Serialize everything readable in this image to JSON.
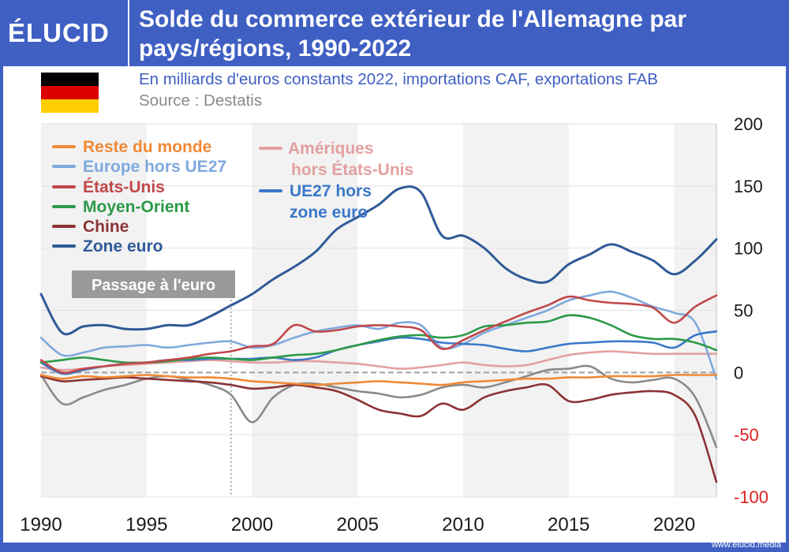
{
  "header": {
    "logo": "ÉLUCID",
    "title": "Solde du commerce extérieur de l'Allemagne par pays/régions, 1990-2022",
    "subtitle": "En milliards d'euros constants 2022, importations CAF, exportations FAB",
    "source": "Source : Destatis"
  },
  "flag_colors": [
    "#000000",
    "#dd0000",
    "#ffce00"
  ],
  "footer": {
    "url": "www.elucid.media"
  },
  "chart_data": {
    "type": "line",
    "title": "",
    "xlabel": "",
    "ylabel": "",
    "xlim": [
      1990,
      2022
    ],
    "ylim": [
      -100,
      200
    ],
    "x_ticks": [
      1990,
      1995,
      2000,
      2005,
      2010,
      2015,
      2020
    ],
    "y_ticks": [
      200,
      150,
      100,
      50,
      0,
      -50,
      -100
    ],
    "y_tick_colors": {
      "positive": "#1a1a1a",
      "negative": "#e0201f"
    },
    "grid": true,
    "shaded_bands": true,
    "legend_position": "top-left",
    "annotation": {
      "label": "Passage à l'euro",
      "x": 1999
    },
    "zero_line": "dashed",
    "x": [
      1990,
      1991,
      1992,
      1993,
      1994,
      1995,
      1996,
      1997,
      1998,
      1999,
      2000,
      2001,
      2002,
      2003,
      2004,
      2005,
      2006,
      2007,
      2008,
      2009,
      2010,
      2011,
      2012,
      2013,
      2014,
      2015,
      2016,
      2017,
      2018,
      2019,
      2020,
      2021,
      2022
    ],
    "series": [
      {
        "name": "Reste du monde",
        "color": "#f08a35",
        "values": [
          -2,
          -5,
          -3,
          -4,
          -3,
          -2,
          -3,
          -4,
          -4,
          -5,
          -7,
          -8,
          -9,
          -10,
          -9,
          -8,
          -7,
          -8,
          -9,
          -10,
          -8,
          -7,
          -6,
          -5,
          -5,
          -4,
          -4,
          -3,
          -3,
          -3,
          -2,
          -2,
          -2
        ]
      },
      {
        "name": "Europe hors UE27",
        "color": "#7fa9dd",
        "values": [
          28,
          14,
          16,
          20,
          21,
          22,
          20,
          22,
          24,
          25,
          20,
          22,
          28,
          33,
          36,
          38,
          35,
          40,
          38,
          20,
          23,
          32,
          38,
          44,
          50,
          58,
          62,
          65,
          60,
          53,
          48,
          40,
          -5
        ]
      },
      {
        "name": "États-Unis",
        "color": "#c0484b",
        "values": [
          10,
          0,
          3,
          5,
          7,
          8,
          10,
          12,
          15,
          17,
          21,
          23,
          38,
          33,
          34,
          37,
          38,
          37,
          34,
          19,
          26,
          34,
          41,
          48,
          54,
          61,
          58,
          56,
          55,
          52,
          40,
          53,
          62
        ]
      },
      {
        "name": "Moyen-Orient",
        "color": "#2c9a48",
        "values": [
          8,
          10,
          12,
          10,
          8,
          8,
          9,
          11,
          12,
          11,
          10,
          12,
          14,
          15,
          18,
          22,
          26,
          29,
          30,
          28,
          30,
          37,
          38,
          40,
          41,
          46,
          44,
          38,
          30,
          27,
          27,
          24,
          18
        ]
      },
      {
        "name": "Chine",
        "color": "#8c3335",
        "values": [
          -3,
          -7,
          -6,
          -5,
          -4,
          -5,
          -6,
          -7,
          -8,
          -10,
          -13,
          -12,
          -10,
          -12,
          -15,
          -22,
          -30,
          -33,
          -35,
          -25,
          -30,
          -20,
          -15,
          -12,
          -10,
          -23,
          -22,
          -18,
          -16,
          -15,
          -18,
          -35,
          -88
        ]
      },
      {
        "name": "Zone euro",
        "color": "#2f5a97",
        "values": [
          63,
          32,
          37,
          38,
          35,
          35,
          38,
          38,
          45,
          54,
          63,
          75,
          85,
          97,
          115,
          125,
          135,
          148,
          145,
          110,
          110,
          100,
          84,
          75,
          73,
          87,
          95,
          103,
          97,
          90,
          79,
          90,
          107
        ]
      },
      {
        "name": "Amériques hors États-Unis",
        "color": "#e4a0a0",
        "values": [
          4,
          2,
          3,
          5,
          6,
          7,
          8,
          9,
          10,
          9,
          8,
          8,
          9,
          9,
          8,
          7,
          5,
          3,
          4,
          6,
          8,
          6,
          5,
          6,
          10,
          14,
          16,
          17,
          16,
          15,
          15,
          15,
          15
        ]
      },
      {
        "name": "UE27 hors zone euro",
        "color": "#3a78c9",
        "values": [
          8,
          -1,
          2,
          5,
          7,
          8,
          10,
          10,
          11,
          11,
          11,
          12,
          10,
          12,
          18,
          22,
          25,
          28,
          27,
          24,
          23,
          22,
          19,
          17,
          20,
          23,
          24,
          25,
          25,
          24,
          20,
          30,
          33
        ]
      },
      {
        "name": "",
        "color": "#8a8a8a",
        "values": [
          -2,
          -25,
          -20,
          -14,
          -10,
          -5,
          -3,
          -6,
          -10,
          -18,
          -40,
          -20,
          -10,
          -9,
          -12,
          -15,
          -17,
          -20,
          -18,
          -12,
          -10,
          -12,
          -8,
          -3,
          2,
          3,
          5,
          -5,
          -8,
          -6,
          -5,
          -20,
          -60
        ]
      }
    ]
  }
}
